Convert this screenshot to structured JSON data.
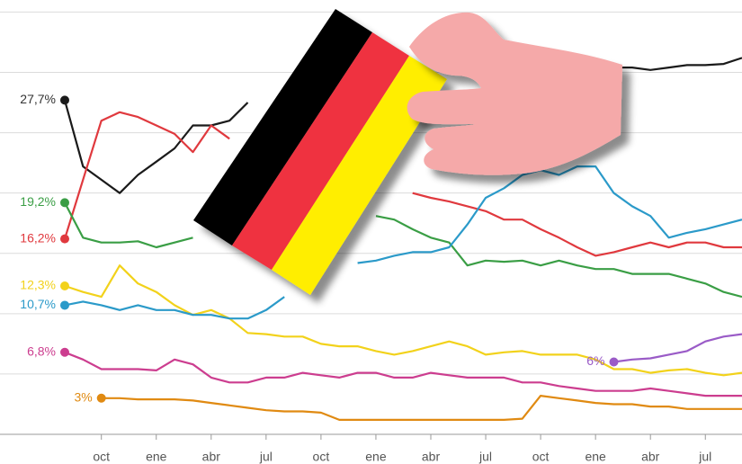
{
  "chart_data": {
    "type": "line",
    "categories": [
      null,
      null,
      "oct",
      null,
      null,
      "ene",
      null,
      null,
      "abr",
      null,
      null,
      "jul",
      null,
      null,
      "oct",
      null,
      null,
      "ene",
      null,
      null,
      "abr",
      null,
      null,
      "jul",
      null,
      null,
      "oct",
      null,
      null,
      "ene",
      null,
      null,
      "abr",
      null,
      null,
      "jul",
      null,
      null
    ],
    "ylim": [
      0,
      36
    ],
    "yticks": [
      0,
      5,
      10,
      15,
      20,
      25,
      30,
      35
    ],
    "grid": true,
    "series": [
      {
        "color": "#1a1a1a",
        "values": [
          27.7,
          22.2,
          21.1,
          20.0,
          21.5,
          22.6,
          23.7,
          25.6,
          25.6,
          26.0,
          27.5,
          null,
          null,
          null,
          null,
          null,
          null,
          null,
          null,
          null,
          null,
          null,
          null,
          null,
          null,
          null,
          null,
          null,
          null,
          null,
          30.4,
          30.4,
          30.2,
          30.4,
          30.6,
          30.6,
          30.7,
          31.2
        ],
        "value_labels": [
          "27,7%",
          null,
          null,
          null,
          null,
          null,
          null,
          null,
          null,
          null,
          null,
          null,
          null,
          null,
          null,
          null,
          null,
          null,
          null,
          null,
          null,
          null,
          null,
          null,
          null,
          null,
          null,
          null,
          null,
          null,
          null,
          null,
          null,
          null,
          null,
          null,
          null,
          null
        ]
      },
      {
        "color": "#e0393e",
        "values": [
          16.2,
          21.1,
          26.0,
          26.7,
          26.3,
          25.6,
          24.9,
          23.4,
          25.6,
          24.5,
          null,
          null,
          null,
          null,
          null,
          null,
          null,
          null,
          null,
          20.0,
          19.6,
          19.3,
          18.9,
          18.5,
          17.8,
          17.8,
          17.0,
          16.3,
          15.5,
          14.8,
          15.1,
          15.5,
          15.9,
          15.5,
          15.9,
          15.9,
          15.5,
          15.5
        ],
        "value_labels": [
          "16,2%",
          null,
          null,
          null,
          null,
          null,
          null,
          null,
          null,
          null,
          null,
          null,
          null,
          null,
          null,
          null,
          null,
          null,
          null,
          null,
          null,
          null,
          null,
          null,
          null,
          null,
          null,
          null,
          null,
          null,
          null,
          null,
          null,
          null,
          null,
          null,
          null,
          null
        ]
      },
      {
        "color": "#3a9e45",
        "values": [
          19.2,
          16.3,
          15.9,
          15.9,
          16.0,
          15.5,
          15.9,
          16.3,
          null,
          null,
          null,
          null,
          null,
          null,
          null,
          null,
          null,
          18.1,
          17.8,
          17.0,
          16.3,
          15.9,
          14.0,
          14.4,
          14.3,
          14.4,
          14.0,
          14.4,
          14.0,
          13.7,
          13.7,
          13.3,
          13.3,
          13.3,
          12.9,
          12.5,
          11.8,
          11.4
        ],
        "value_labels": [
          "19,2%",
          null,
          null,
          null,
          null,
          null,
          null,
          null,
          null,
          null,
          null,
          null,
          null,
          null,
          null,
          null,
          null,
          null,
          null,
          null,
          null,
          null,
          null,
          null,
          null,
          null,
          null,
          null,
          null,
          null,
          null,
          null,
          null,
          null,
          null,
          null,
          null,
          null
        ]
      },
      {
        "color": "#f2d21b",
        "values": [
          12.3,
          11.8,
          11.4,
          14.0,
          12.5,
          11.8,
          10.7,
          9.9,
          10.3,
          9.6,
          8.4,
          8.3,
          8.1,
          8.1,
          7.5,
          7.3,
          7.3,
          6.9,
          6.6,
          6.9,
          7.3,
          7.7,
          7.3,
          6.6,
          6.8,
          6.9,
          6.6,
          6.6,
          6.6,
          6.2,
          5.4,
          5.4,
          5.1,
          5.3,
          5.4,
          5.1,
          4.9,
          5.1
        ],
        "value_labels": [
          "12,3%",
          null,
          null,
          null,
          null,
          null,
          null,
          null,
          null,
          null,
          null,
          null,
          null,
          null,
          null,
          null,
          null,
          null,
          null,
          null,
          null,
          null,
          null,
          null,
          null,
          null,
          null,
          null,
          null,
          null,
          null,
          null,
          null,
          null,
          null,
          null,
          null,
          null
        ]
      },
      {
        "color": "#2b9ac9",
        "values": [
          10.7,
          11.0,
          10.7,
          10.3,
          10.7,
          10.3,
          10.3,
          9.9,
          9.9,
          9.6,
          9.6,
          10.3,
          11.4,
          null,
          null,
          null,
          14.2,
          14.4,
          14.8,
          15.1,
          15.1,
          15.5,
          17.4,
          19.6,
          20.4,
          21.5,
          21.9,
          21.5,
          22.2,
          22.2,
          20.0,
          18.9,
          18.1,
          16.3,
          16.7,
          17.0,
          17.4,
          17.8
        ],
        "value_labels": [
          "10,7%",
          null,
          null,
          null,
          null,
          null,
          null,
          null,
          null,
          null,
          null,
          null,
          null,
          null,
          null,
          null,
          null,
          null,
          null,
          null,
          null,
          null,
          null,
          null,
          null,
          null,
          null,
          null,
          null,
          null,
          null,
          null,
          null,
          null,
          null,
          null,
          null,
          null
        ]
      },
      {
        "color": "#cc3d8f",
        "values": [
          6.8,
          6.2,
          5.4,
          5.4,
          5.4,
          5.3,
          6.2,
          5.8,
          4.7,
          4.3,
          4.3,
          4.7,
          4.7,
          5.1,
          4.9,
          4.7,
          5.1,
          5.1,
          4.7,
          4.7,
          5.1,
          4.9,
          4.7,
          4.7,
          4.7,
          4.3,
          4.3,
          4.0,
          3.8,
          3.6,
          3.6,
          3.6,
          3.8,
          3.6,
          3.4,
          3.2,
          3.2,
          3.2
        ],
        "value_labels": [
          "6,8%",
          null,
          null,
          null,
          null,
          null,
          null,
          null,
          null,
          null,
          null,
          null,
          null,
          null,
          null,
          null,
          null,
          null,
          null,
          null,
          null,
          null,
          null,
          null,
          null,
          null,
          null,
          null,
          null,
          null,
          null,
          null,
          null,
          null,
          null,
          null,
          null,
          null
        ]
      },
      {
        "color": "#e08a12",
        "values": [
          null,
          null,
          3,
          3.0,
          2.9,
          2.9,
          2.9,
          2.8,
          2.6,
          2.4,
          2.2,
          2.0,
          1.9,
          1.9,
          1.8,
          1.2,
          1.2,
          1.2,
          1.2,
          1.2,
          1.2,
          1.2,
          1.2,
          1.2,
          1.2,
          1.3,
          3.2,
          3.0,
          2.8,
          2.6,
          2.5,
          2.5,
          2.3,
          2.3,
          2.1,
          2.1,
          2.1,
          2.1
        ],
        "value_labels": [
          null,
          null,
          "3%",
          null,
          null,
          null,
          null,
          null,
          null,
          null,
          null,
          null,
          null,
          null,
          null,
          null,
          null,
          null,
          null,
          null,
          null,
          null,
          null,
          null,
          null,
          null,
          null,
          null,
          null,
          null,
          null,
          null,
          null,
          null,
          null,
          null,
          null,
          null
        ]
      },
      {
        "color": "#9a5bc7",
        "values": [
          null,
          null,
          null,
          null,
          null,
          null,
          null,
          null,
          null,
          null,
          null,
          null,
          null,
          null,
          null,
          null,
          null,
          null,
          null,
          null,
          null,
          null,
          null,
          null,
          null,
          null,
          null,
          null,
          null,
          null,
          6,
          6.2,
          6.3,
          6.6,
          6.9,
          7.7,
          8.1,
          8.3
        ],
        "value_labels": [
          null,
          null,
          null,
          null,
          null,
          null,
          null,
          null,
          null,
          null,
          null,
          null,
          null,
          null,
          null,
          null,
          null,
          null,
          null,
          null,
          null,
          null,
          null,
          null,
          null,
          null,
          null,
          null,
          null,
          null,
          "6%",
          null,
          null,
          null,
          null,
          null,
          null,
          null
        ]
      }
    ]
  }
}
